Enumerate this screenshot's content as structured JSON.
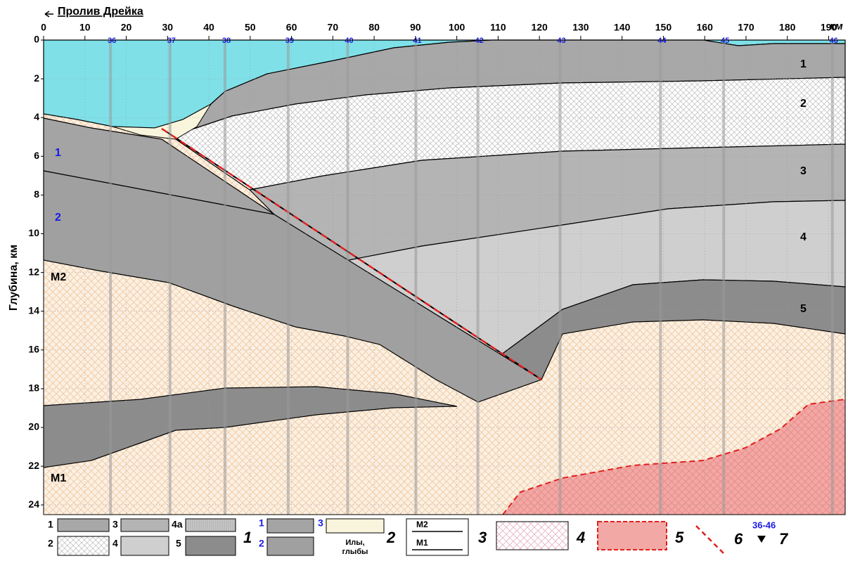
{
  "chart_data": {
    "type": "section",
    "title": "Пролив Дрейка",
    "x_unit": "км",
    "y_label": "Глубина, км",
    "xlim": [
      0,
      194
    ],
    "ylim": [
      0,
      24.5
    ],
    "xticks": [
      0,
      10,
      20,
      30,
      40,
      50,
      60,
      70,
      80,
      90,
      100,
      110,
      120,
      130,
      140,
      150,
      160,
      170,
      180,
      190
    ],
    "yticks": [
      0,
      2,
      4,
      6,
      8,
      10,
      12,
      14,
      16,
      18,
      20,
      22,
      24
    ],
    "grid": true,
    "stations": {
      "labels": [
        "36",
        "37",
        "38",
        "39",
        "40",
        "41",
        "42",
        "43",
        "44",
        "45",
        "46"
      ],
      "x": [
        16.2,
        30.6,
        43.9,
        59.2,
        73.6,
        90.1,
        105.1,
        125,
        149.3,
        164.6,
        190.9
      ]
    },
    "layer_labels": [
      "1",
      "2",
      "3",
      "4",
      "5"
    ],
    "block_labels": [
      "1",
      "2"
    ],
    "boundary_labels": [
      "M2",
      "M1"
    ]
  },
  "legend": {
    "items_1": [
      "1",
      "2",
      "3",
      "4",
      "4а",
      "5"
    ],
    "number_1": "1",
    "items_2": [
      "1",
      "2",
      "3"
    ],
    "silt": [
      "Илы,",
      "глыбы"
    ],
    "number_2": "2",
    "boundaries": [
      "M2",
      "M1"
    ],
    "number_3": "3",
    "number_4": "4",
    "number_5": "5",
    "number_6": "6",
    "stations": "36-46",
    "number_7": "7"
  }
}
